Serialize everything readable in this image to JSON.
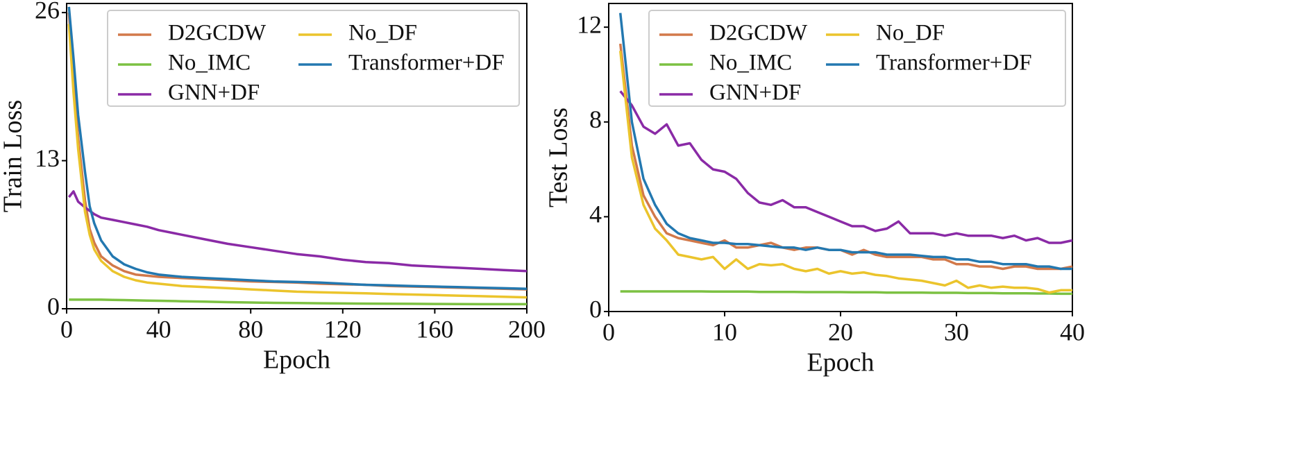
{
  "chart_data": [
    {
      "type": "line",
      "xlabel": "Epoch",
      "ylabel": "Train Loss",
      "x": [
        1,
        3,
        5,
        8,
        10,
        12,
        15,
        20,
        25,
        30,
        35,
        40,
        50,
        60,
        70,
        80,
        90,
        100,
        110,
        120,
        130,
        140,
        150,
        160,
        170,
        180,
        190,
        200
      ],
      "xlim": [
        0,
        200
      ],
      "ylim": [
        0,
        26.8
      ],
      "xticks": [
        0,
        40,
        80,
        120,
        160,
        200
      ],
      "yticks": [
        0,
        13,
        26
      ],
      "grid": false,
      "legend": true,
      "series": [
        {
          "name": "D2GCDW",
          "color": "#d2794a",
          "values": [
            26,
            20,
            15,
            9.5,
            7,
            5.8,
            4.6,
            3.8,
            3.3,
            3.0,
            2.9,
            2.8,
            2.7,
            2.6,
            2.5,
            2.4,
            2.35,
            2.3,
            2.2,
            2.15,
            2.1,
            2.0,
            1.95,
            1.9,
            1.85,
            1.8,
            1.75,
            1.7
          ]
        },
        {
          "name": "No_IMC",
          "color": "#7cc142",
          "values": [
            0.8,
            0.8,
            0.8,
            0.8,
            0.8,
            0.8,
            0.8,
            0.78,
            0.76,
            0.74,
            0.72,
            0.7,
            0.66,
            0.62,
            0.58,
            0.55,
            0.52,
            0.5,
            0.48,
            0.46,
            0.45,
            0.44,
            0.43,
            0.42,
            0.41,
            0.4,
            0.4,
            0.4
          ]
        },
        {
          "name": "GNN+DF",
          "color": "#8a2aa6",
          "values": [
            9.8,
            10.3,
            9.4,
            8.9,
            8.6,
            8.3,
            8.0,
            7.8,
            7.6,
            7.4,
            7.2,
            6.9,
            6.5,
            6.1,
            5.7,
            5.4,
            5.1,
            4.8,
            4.6,
            4.3,
            4.1,
            4.0,
            3.8,
            3.7,
            3.6,
            3.5,
            3.4,
            3.3
          ]
        },
        {
          "name": "No_DF",
          "color": "#ebc42c",
          "values": [
            25,
            19,
            14,
            8.5,
            6.5,
            5.2,
            4.2,
            3.3,
            2.8,
            2.5,
            2.3,
            2.2,
            2.0,
            1.9,
            1.8,
            1.7,
            1.6,
            1.5,
            1.45,
            1.4,
            1.35,
            1.3,
            1.25,
            1.2,
            1.15,
            1.1,
            1.05,
            1.0
          ]
        },
        {
          "name": "Transformer+DF",
          "color": "#2378b0",
          "values": [
            26.5,
            22,
            17,
            12,
            9,
            7.5,
            6,
            4.6,
            3.9,
            3.5,
            3.2,
            3.0,
            2.8,
            2.7,
            2.6,
            2.5,
            2.4,
            2.35,
            2.3,
            2.2,
            2.1,
            2.05,
            2.0,
            1.95,
            1.9,
            1.85,
            1.8,
            1.75
          ]
        }
      ]
    },
    {
      "type": "line",
      "xlabel": "Epoch",
      "ylabel": "Test Loss",
      "x": [
        1,
        2,
        3,
        4,
        5,
        6,
        7,
        8,
        9,
        10,
        11,
        12,
        13,
        14,
        15,
        16,
        17,
        18,
        19,
        20,
        21,
        22,
        23,
        24,
        25,
        26,
        27,
        28,
        29,
        30,
        31,
        32,
        33,
        34,
        35,
        36,
        37,
        38,
        39,
        40
      ],
      "xlim": [
        0,
        40
      ],
      "ylim": [
        0,
        13
      ],
      "xticks": [
        0,
        10,
        20,
        30,
        40
      ],
      "yticks": [
        0,
        4,
        8,
        12
      ],
      "grid": false,
      "legend": true,
      "series": [
        {
          "name": "D2GCDW",
          "color": "#d2794a",
          "values": [
            11.3,
            7.0,
            4.9,
            4.0,
            3.3,
            3.1,
            3.0,
            2.9,
            2.8,
            3.0,
            2.7,
            2.7,
            2.8,
            2.9,
            2.7,
            2.6,
            2.7,
            2.7,
            2.6,
            2.6,
            2.4,
            2.6,
            2.4,
            2.3,
            2.3,
            2.3,
            2.3,
            2.2,
            2.2,
            2.0,
            2.0,
            1.9,
            1.9,
            1.8,
            1.9,
            1.9,
            1.8,
            1.8,
            1.8,
            1.9
          ]
        },
        {
          "name": "No_IMC",
          "color": "#7cc142",
          "values": [
            0.85,
            0.85,
            0.85,
            0.85,
            0.85,
            0.85,
            0.85,
            0.85,
            0.84,
            0.84,
            0.84,
            0.84,
            0.83,
            0.83,
            0.83,
            0.83,
            0.82,
            0.82,
            0.82,
            0.82,
            0.81,
            0.81,
            0.81,
            0.8,
            0.8,
            0.8,
            0.8,
            0.79,
            0.79,
            0.79,
            0.78,
            0.78,
            0.78,
            0.77,
            0.77,
            0.77,
            0.76,
            0.76,
            0.75,
            0.75
          ]
        },
        {
          "name": "GNN+DF",
          "color": "#8a2aa6",
          "values": [
            9.3,
            8.7,
            7.8,
            7.5,
            7.9,
            7.0,
            7.1,
            6.4,
            6.0,
            5.9,
            5.6,
            5.0,
            4.6,
            4.5,
            4.7,
            4.4,
            4.4,
            4.2,
            4.0,
            3.8,
            3.6,
            3.6,
            3.4,
            3.5,
            3.8,
            3.3,
            3.3,
            3.3,
            3.2,
            3.3,
            3.2,
            3.2,
            3.2,
            3.1,
            3.2,
            3.0,
            3.1,
            2.9,
            2.9,
            3.0
          ]
        },
        {
          "name": "No_DF",
          "color": "#ebc42c",
          "values": [
            11.0,
            6.5,
            4.5,
            3.5,
            3.0,
            2.4,
            2.3,
            2.2,
            2.3,
            1.8,
            2.2,
            1.8,
            2.0,
            1.95,
            2.0,
            1.8,
            1.7,
            1.8,
            1.6,
            1.7,
            1.6,
            1.65,
            1.55,
            1.5,
            1.4,
            1.35,
            1.3,
            1.2,
            1.1,
            1.3,
            1.0,
            1.1,
            1.0,
            1.05,
            1.0,
            1.0,
            0.95,
            0.8,
            0.9,
            0.9
          ]
        },
        {
          "name": "Transformer+DF",
          "color": "#2378b0",
          "values": [
            12.6,
            8.0,
            5.6,
            4.5,
            3.7,
            3.3,
            3.1,
            3.0,
            2.9,
            2.9,
            2.85,
            2.85,
            2.8,
            2.75,
            2.7,
            2.7,
            2.6,
            2.7,
            2.6,
            2.6,
            2.5,
            2.5,
            2.5,
            2.4,
            2.4,
            2.4,
            2.35,
            2.3,
            2.3,
            2.2,
            2.2,
            2.1,
            2.1,
            2.0,
            2.0,
            2.0,
            1.9,
            1.9,
            1.8,
            1.8
          ]
        }
      ]
    }
  ]
}
